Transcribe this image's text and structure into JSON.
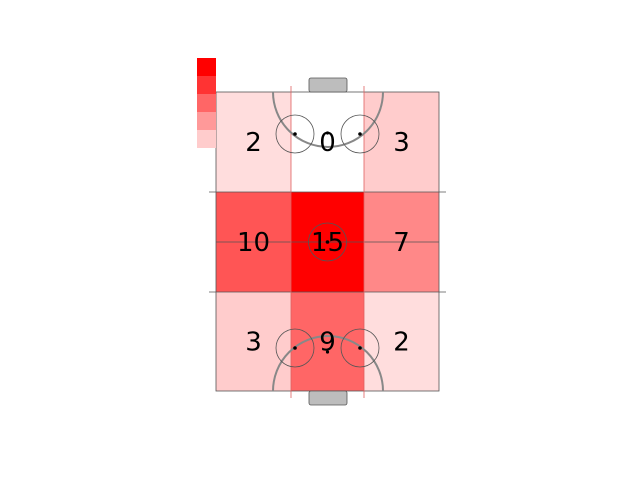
{
  "chart_data": {
    "type": "heatmap",
    "title": "",
    "rows": 3,
    "cols": 3,
    "values": [
      [
        2,
        0,
        3
      ],
      [
        10,
        15,
        7
      ],
      [
        3,
        9,
        2
      ]
    ],
    "colors": {
      "base": "#ff0000",
      "goal": "#bdbdbd",
      "lines": "#555555",
      "zone_lines": "#e06060"
    },
    "legend": {
      "placement": "top-left",
      "swatches": [
        "#ff0000",
        "#ff3333",
        "#ff6666",
        "#ff9999",
        "#ffcccc"
      ]
    }
  }
}
